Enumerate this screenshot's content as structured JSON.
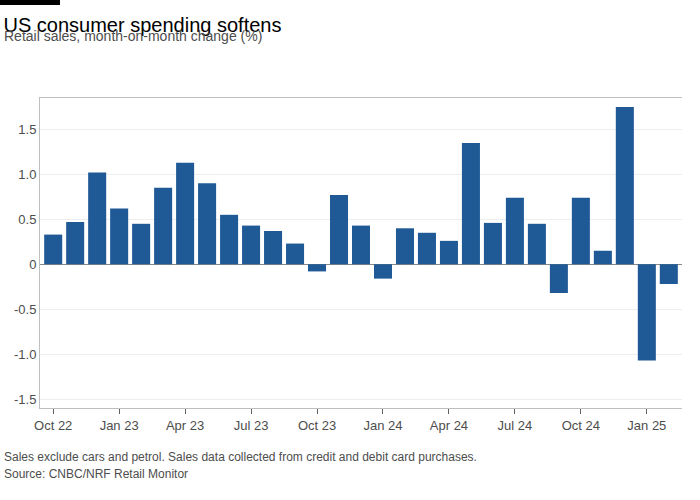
{
  "chart_data": {
    "type": "bar",
    "title": "US consumer spending softens",
    "subtitle": "Retail sales, month-on-month change (%)",
    "footnote": "Sales exclude cars and petrol. Sales data collected from credit and debit card purchases.",
    "source": "Source: CNBC/NRF Retail Monitor",
    "categories": [
      "Oct 22",
      null,
      null,
      "Jan 23",
      null,
      null,
      "Apr 23",
      null,
      null,
      "Jul 23",
      null,
      null,
      "Oct 23",
      null,
      null,
      "Jan 24",
      null,
      null,
      "Apr 24",
      null,
      null,
      "Jul 24",
      null,
      null,
      "Oct 24",
      null,
      null,
      "Jan 25",
      null
    ],
    "values": [
      0.33,
      0.47,
      1.02,
      0.62,
      0.45,
      0.85,
      1.13,
      0.9,
      0.55,
      0.43,
      0.37,
      0.23,
      -0.08,
      0.77,
      0.43,
      -0.16,
      0.4,
      0.35,
      0.26,
      1.35,
      0.46,
      0.74,
      0.45,
      -0.32,
      0.74,
      0.15,
      1.75,
      -1.07,
      -0.22
    ],
    "color": "#1f5a96",
    "ylim": [
      -1.6,
      1.85
    ],
    "yticks": [
      -1.5,
      {
        "value": -1.0,
        "label": "-1.0"
      },
      -0.5,
      0,
      0.5,
      {
        "value": 1.0,
        "label": "1.0"
      },
      1.5
    ],
    "grid": true
  }
}
